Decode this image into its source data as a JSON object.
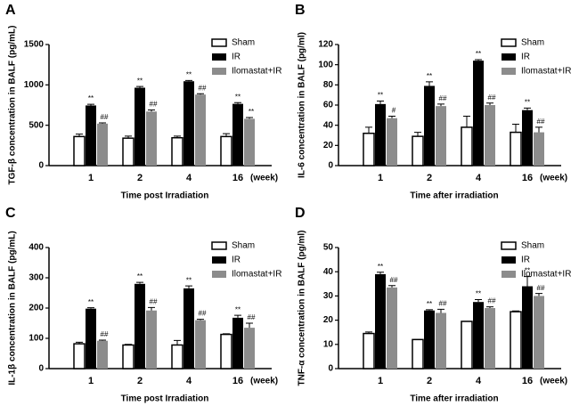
{
  "chart_data": [
    {
      "type": "bar",
      "panel": "A",
      "y_label": "TGF-β concentration in BALF (pg/mL)",
      "x_label": "Time post Irradiation",
      "x_unit_label": "(week)",
      "categories": [
        "1",
        "2",
        "4",
        "16"
      ],
      "ylim": [
        0,
        1500
      ],
      "yticks": [
        0,
        500,
        1000,
        1500
      ],
      "legend": "top-right",
      "series": [
        {
          "name": "Sham",
          "color": "#ffffff",
          "values": [
            360,
            340,
            345,
            360
          ],
          "errors": [
            30,
            25,
            20,
            35
          ]
        },
        {
          "name": "IR",
          "color": "#000000",
          "values": [
            745,
            965,
            1045,
            765
          ],
          "errors": [
            15,
            15,
            10,
            15
          ],
          "markers": [
            "**",
            "**",
            "**",
            "**"
          ]
        },
        {
          "name": "Ilomastat+IR",
          "color": "#8c8c8c",
          "values": [
            520,
            670,
            880,
            580
          ],
          "errors": [
            10,
            20,
            10,
            15
          ],
          "markers": [
            "##",
            "##",
            "##",
            "**"
          ]
        }
      ]
    },
    {
      "type": "bar",
      "panel": "B",
      "y_label": "IL-6 concentration in BALF (pg/ml)",
      "x_label": "Time after irradiation",
      "x_unit_label": "(week)",
      "categories": [
        "1",
        "2",
        "4",
        "16"
      ],
      "ylim": [
        0,
        120
      ],
      "yticks": [
        0,
        20,
        40,
        60,
        80,
        100,
        120
      ],
      "legend": "top-right",
      "series": [
        {
          "name": "Sham",
          "color": "#ffffff",
          "values": [
            32,
            29,
            38,
            33
          ],
          "errors": [
            6,
            4,
            11,
            8
          ]
        },
        {
          "name": "IR",
          "color": "#000000",
          "values": [
            61,
            79,
            104,
            55
          ],
          "errors": [
            3,
            4,
            1,
            2
          ],
          "markers": [
            "**",
            "**",
            "**",
            "**"
          ]
        },
        {
          "name": "Ilomastat+IR",
          "color": "#8c8c8c",
          "values": [
            47,
            59,
            60,
            33
          ],
          "errors": [
            2,
            2,
            2,
            5
          ],
          "markers": [
            "#",
            "##",
            "##",
            "##"
          ]
        }
      ]
    },
    {
      "type": "bar",
      "panel": "C",
      "y_label": "IL-1β concentration in BALF (pg/mL)",
      "x_label": "Time post Irradiation",
      "x_unit_label": "(week)",
      "categories": [
        "1",
        "2",
        "4",
        "16"
      ],
      "ylim": [
        0,
        400
      ],
      "yticks": [
        0,
        100,
        200,
        300,
        400
      ],
      "legend": "top-right",
      "series": [
        {
          "name": "Sham",
          "color": "#ffffff",
          "values": [
            82,
            78,
            78,
            113
          ],
          "errors": [
            5,
            2,
            15,
            2
          ]
        },
        {
          "name": "IR",
          "color": "#000000",
          "values": [
            198,
            280,
            265,
            168
          ],
          "errors": [
            3,
            5,
            8,
            8
          ],
          "markers": [
            "**",
            "**",
            "**",
            "**"
          ]
        },
        {
          "name": "Ilomastat+IR",
          "color": "#8c8c8c",
          "values": [
            92,
            192,
            160,
            135
          ],
          "errors": [
            2,
            10,
            3,
            15
          ],
          "markers": [
            "##",
            "##",
            "##",
            "##"
          ]
        }
      ]
    },
    {
      "type": "bar",
      "panel": "D",
      "y_label": "TNF-α concentration in BALF (pg/ml)",
      "x_label": "Time after irradiation",
      "x_unit_label": "(week)",
      "categories": [
        "1",
        "2",
        "4",
        "16"
      ],
      "ylim": [
        0,
        50
      ],
      "yticks": [
        0,
        10,
        20,
        30,
        40,
        50
      ],
      "legend": "top-right",
      "series": [
        {
          "name": "Sham",
          "color": "#ffffff",
          "values": [
            14.5,
            12,
            19.5,
            23.5
          ],
          "errors": [
            0.6,
            0,
            0,
            0.3
          ]
        },
        {
          "name": "IR",
          "color": "#000000",
          "values": [
            39,
            24,
            27.5,
            34
          ],
          "errors": [
            0.8,
            0.3,
            1,
            4
          ],
          "markers": [
            "**",
            "**",
            "**",
            "**"
          ]
        },
        {
          "name": "Ilomastat+IR",
          "color": "#8c8c8c",
          "values": [
            33.5,
            23,
            25,
            30
          ],
          "errors": [
            0.8,
            1.5,
            0.5,
            1
          ],
          "markers": [
            "##",
            "##",
            "##",
            "##"
          ]
        }
      ]
    }
  ]
}
